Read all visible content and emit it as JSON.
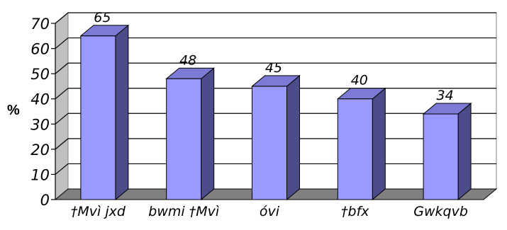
{
  "chart_data": {
    "type": "bar",
    "ylabel": "%",
    "categories": [
      "†Mvì jxd",
      "bwmi †Mvì",
      "óvi",
      "†bfx",
      "Gwkqvb"
    ],
    "values": [
      65,
      48,
      45,
      40,
      34
    ],
    "ylim": [
      0,
      70
    ],
    "yticks": [
      0,
      10,
      20,
      30,
      40,
      50,
      60,
      70
    ],
    "grid": true,
    "legend": "none",
    "style": "3d-column",
    "colors": {
      "bar_front": "#9999ff",
      "bar_side": "#4c4c8a",
      "bar_top": "#7b7bd6",
      "back_wall": "#ffffff",
      "floor": "#808080",
      "gridline": "#000000"
    }
  }
}
